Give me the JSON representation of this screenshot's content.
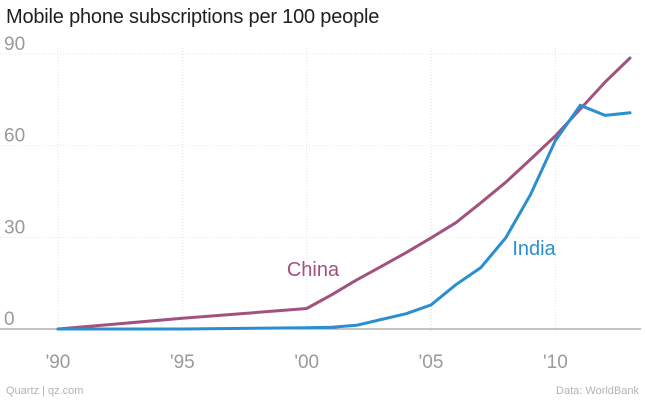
{
  "title": "Mobile phone subscriptions per 100 people",
  "footer": {
    "source_left": "Quartz | qz.com",
    "source_right": "Data: WorldBank"
  },
  "chart_data": {
    "type": "line",
    "title": "Mobile phone subscriptions per 100 people",
    "xlabel": "",
    "ylabel": "",
    "xlim": [
      1990,
      2013
    ],
    "ylim": [
      0,
      90
    ],
    "grid": true,
    "x_ticks": [
      1990,
      1995,
      2000,
      2005,
      2010
    ],
    "x_tick_labels": [
      "'90",
      "'95",
      "'00",
      "'05",
      "'10"
    ],
    "y_ticks": [
      0,
      30,
      60,
      90
    ],
    "y_tick_labels": [
      "0",
      "30",
      "60",
      "90"
    ],
    "series": [
      {
        "name": "China",
        "color": "#a2527e",
        "x": [
          1990,
          1995,
          2000,
          2001,
          2002,
          2003,
          2004,
          2005,
          2006,
          2007,
          2008,
          2009,
          2010,
          2011,
          2012,
          2013
        ],
        "values": [
          0,
          3.5,
          6.7,
          11.2,
          16,
          20.5,
          25,
          29.8,
          34.8,
          41.3,
          48,
          55.5,
          63.2,
          72,
          80.8,
          88.7
        ]
      },
      {
        "name": "India",
        "color": "#2a8fd1",
        "x": [
          1990,
          1995,
          2000,
          2001,
          2002,
          2003,
          2004,
          2005,
          2006,
          2007,
          2008,
          2009,
          2010,
          2011,
          2012,
          2013
        ],
        "values": [
          0,
          0,
          0.4,
          0.6,
          1.2,
          3.1,
          5,
          7.9,
          14.5,
          20.1,
          29.8,
          44,
          61.7,
          73.2,
          69.9,
          70.8
        ]
      }
    ]
  }
}
